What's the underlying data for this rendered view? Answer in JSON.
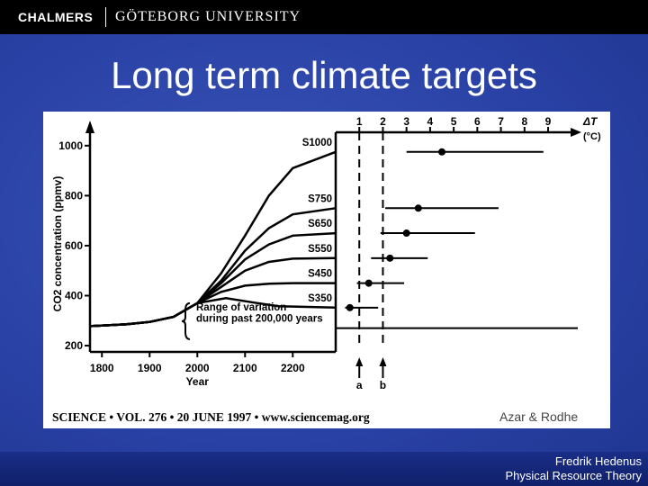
{
  "header": {
    "brand": "CHALMERS",
    "university": "GÖTEBORG UNIVERSITY"
  },
  "slide": {
    "title": "Long term climate targets"
  },
  "figure": {
    "credit_journal": "SCIENCE • VOL. 276 • 20 JUNE 1997 • www.sciencemag.org",
    "credit_authors": "Azar & Rodhe",
    "range_note_line1": "Range of variation",
    "range_note_line2": "during past 200,000 years",
    "marker_a": "a",
    "marker_b": "b"
  },
  "chart_data": [
    {
      "type": "line",
      "xlabel": "Year",
      "ylabel": "CO2 concentration (ppmv)",
      "xlim": [
        1775,
        2290
      ],
      "ylim": [
        175,
        1075
      ],
      "x_ticks": [
        1800,
        1900,
        2000,
        2100,
        2200
      ],
      "y_ticks": [
        200,
        400,
        600,
        800,
        1000
      ],
      "series": [
        {
          "name": "S350",
          "x": [
            1775,
            1850,
            1900,
            1950,
            2000,
            2060,
            2120,
            2170,
            2290
          ],
          "values": [
            278,
            285,
            295,
            315,
            370,
            390,
            372,
            358,
            352
          ]
        },
        {
          "name": "S450",
          "x": [
            1775,
            1850,
            1900,
            1950,
            2000,
            2050,
            2100,
            2150,
            2200,
            2290
          ],
          "values": [
            278,
            285,
            295,
            315,
            370,
            415,
            440,
            448,
            450,
            450
          ]
        },
        {
          "name": "S550",
          "x": [
            1775,
            1850,
            1900,
            1950,
            2000,
            2050,
            2100,
            2150,
            2200,
            2290
          ],
          "values": [
            278,
            285,
            295,
            315,
            370,
            435,
            500,
            535,
            548,
            550
          ]
        },
        {
          "name": "S650",
          "x": [
            1775,
            1850,
            1900,
            1950,
            2000,
            2050,
            2100,
            2150,
            2200,
            2290
          ],
          "values": [
            278,
            285,
            295,
            315,
            370,
            450,
            545,
            605,
            640,
            650
          ]
        },
        {
          "name": "S750",
          "x": [
            1775,
            1850,
            1900,
            1950,
            2000,
            2050,
            2100,
            2150,
            2200,
            2290
          ],
          "values": [
            278,
            285,
            295,
            315,
            370,
            460,
            580,
            670,
            725,
            750
          ]
        },
        {
          "name": "S1000",
          "x": [
            1775,
            1850,
            1900,
            1950,
            2000,
            2050,
            2100,
            2150,
            2200,
            2290
          ],
          "values": [
            278,
            285,
            295,
            315,
            370,
            490,
            640,
            800,
            910,
            975
          ]
        }
      ]
    },
    {
      "type": "scatter",
      "xlabel": "ΔT (°C)",
      "xlim": [
        0,
        9.8
      ],
      "x_ticks": [
        1,
        2,
        3,
        4,
        5,
        6,
        7,
        8,
        9
      ],
      "series_labels": [
        "S350",
        "S450",
        "S550",
        "S650",
        "S750",
        "S1000"
      ],
      "points": [
        {
          "x": 0.6,
          "low": 0.4,
          "high": 1.8
        },
        {
          "x": 1.4,
          "low": 0.9,
          "high": 2.9
        },
        {
          "x": 2.3,
          "low": 1.5,
          "high": 3.9
        },
        {
          "x": 3.0,
          "low": 1.9,
          "high": 5.9
        },
        {
          "x": 3.5,
          "low": 2.1,
          "high": 6.9
        },
        {
          "x": 4.5,
          "low": 3.0,
          "high": 8.8
        }
      ],
      "markers": [
        {
          "label": "a",
          "x": 1.0
        },
        {
          "label": "b",
          "x": 2.0
        }
      ]
    }
  ]
}
